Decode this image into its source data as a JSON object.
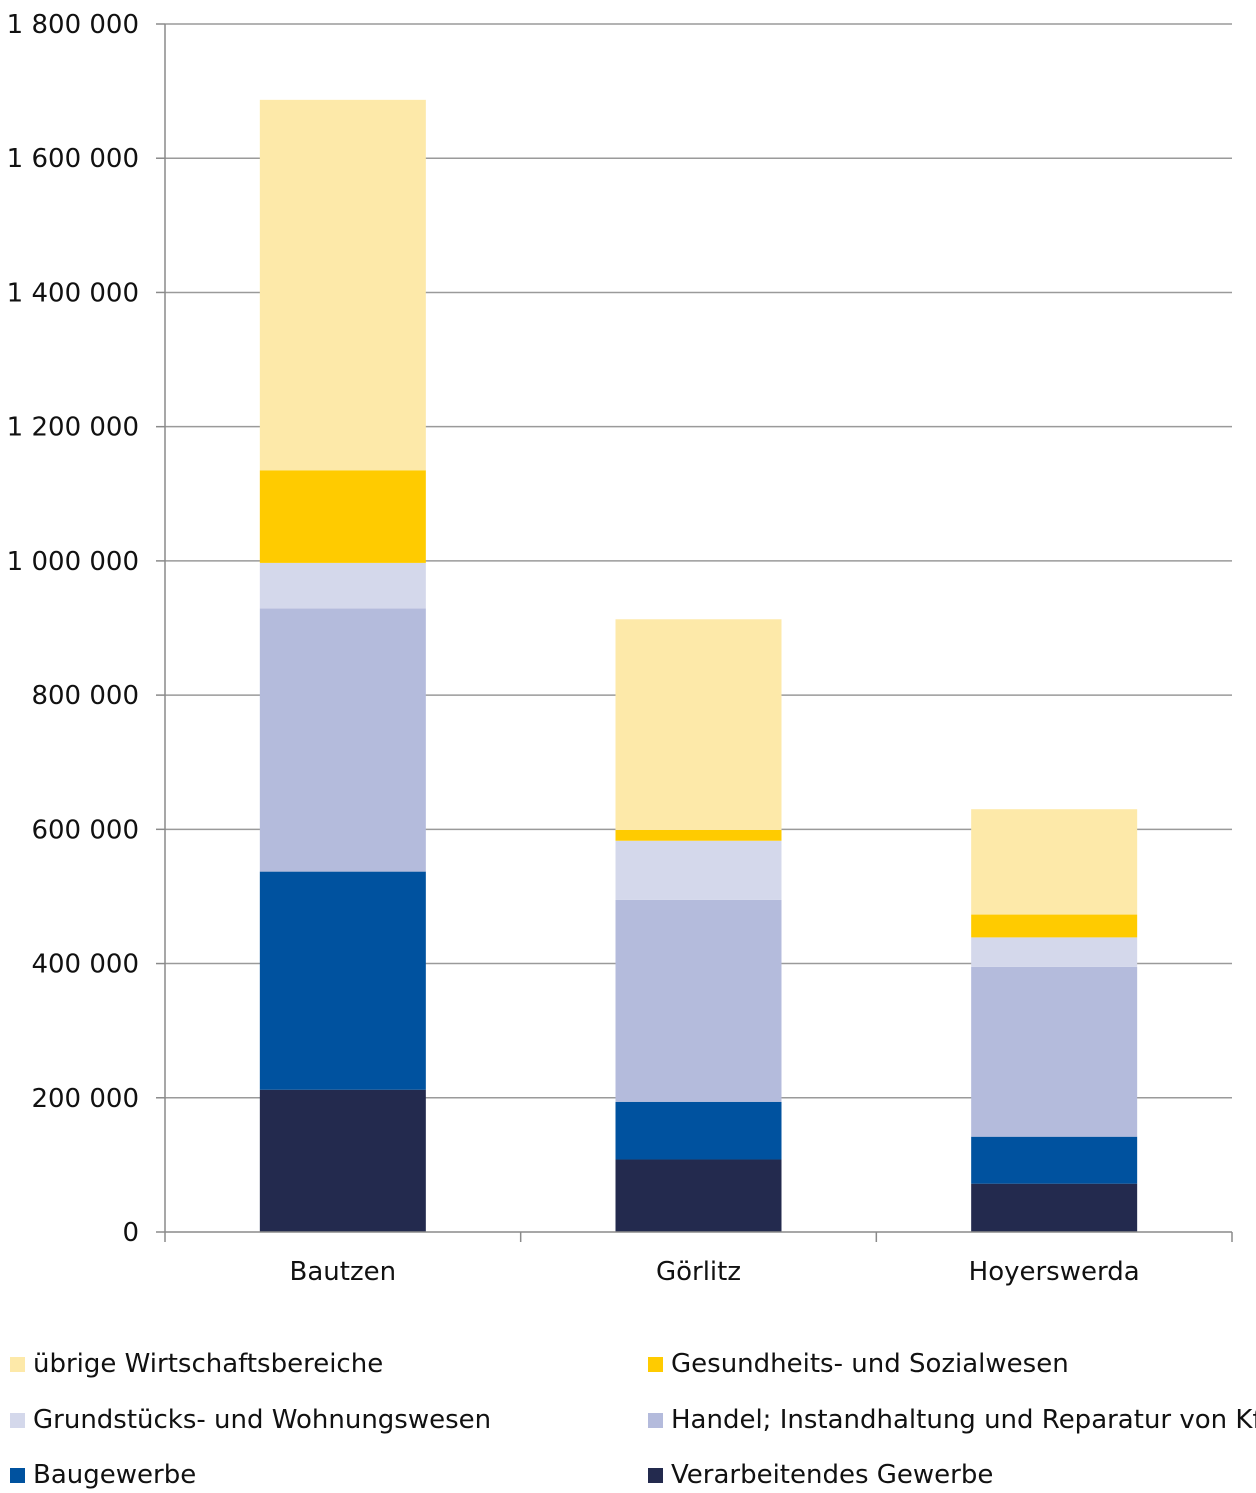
{
  "chart_data": {
    "type": "bar",
    "stacked": true,
    "categories": [
      "Bautzen",
      "Görlitz",
      "Hoyerswerda"
    ],
    "ylim": [
      0,
      1800000
    ],
    "yticks": [
      0,
      200000,
      400000,
      600000,
      800000,
      1000000,
      1200000,
      1400000,
      1600000,
      1800000
    ],
    "ytick_labels": [
      "0",
      "200 000",
      "400 000",
      "600 000",
      "800 000",
      "1 000 000",
      "1 200 000",
      "1 400 000",
      "1 600 000",
      "1 800 000"
    ],
    "grid": true,
    "legend_position": "bottom",
    "series": [
      {
        "name": "Verarbeitendes Gewerbe",
        "color": "#232a4e",
        "values": [
          212000,
          108000,
          72000
        ]
      },
      {
        "name": "Baugewerbe",
        "color": "#00529f",
        "values": [
          325000,
          86000,
          70000
        ]
      },
      {
        "name": "Handel; Instandhaltung und Reparatur von Kfz",
        "color": "#b4bbdc",
        "values": [
          392000,
          301000,
          253000
        ]
      },
      {
        "name": "Grundstücks- und Wohnungswesen",
        "color": "#d4d8eb",
        "values": [
          68000,
          88000,
          44000
        ]
      },
      {
        "name": "Gesundheits- und Sozialwesen",
        "color": "#ffcb00",
        "values": [
          138000,
          16000,
          34000
        ]
      },
      {
        "name": "übrige Wirtschaftsbereiche",
        "color": "#fde9a9",
        "values": [
          552000,
          314000,
          157000
        ]
      }
    ],
    "legend_order": [
      5,
      4,
      3,
      2,
      1,
      0
    ]
  }
}
